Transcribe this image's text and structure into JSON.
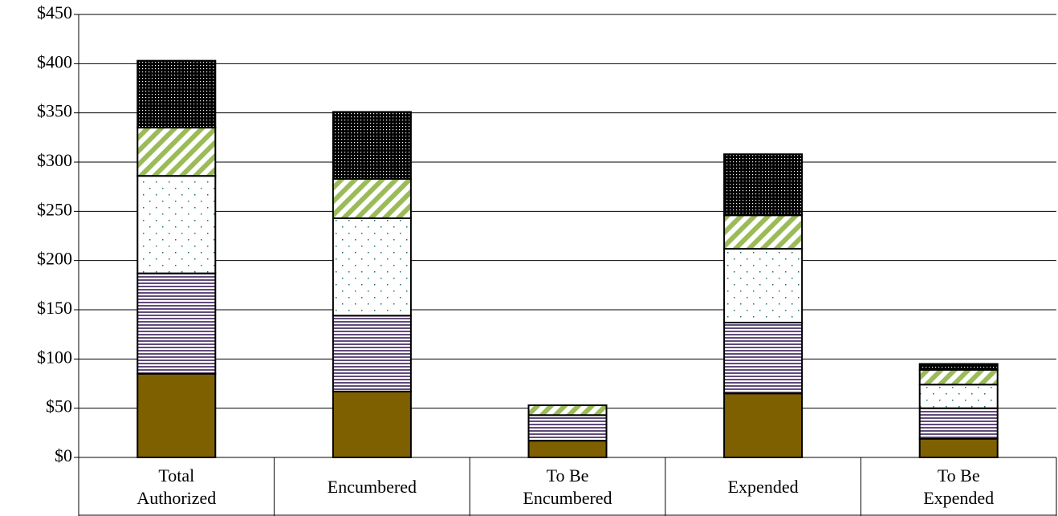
{
  "chart_data": {
    "type": "stacked-bar",
    "categories": [
      "Total Authorized",
      "Encumbered",
      "To Be Encumbered",
      "Expended",
      "To Be Expended"
    ],
    "series": [
      {
        "color": "#7f6000",
        "pattern": "solid",
        "values": [
          85,
          67,
          17,
          65,
          19
        ]
      },
      {
        "color": "#604a7b",
        "pattern": "hlines",
        "values": [
          102,
          77,
          26,
          72,
          31
        ]
      },
      {
        "color": "#1f6f6f",
        "pattern": "dots",
        "values": [
          99,
          99,
          0,
          75,
          24
        ]
      },
      {
        "color": "#9bbb59",
        "pattern": "diagonal",
        "values": [
          49,
          40,
          10,
          34,
          15
        ]
      },
      {
        "color": "#000000",
        "pattern": "dense-dots",
        "values": [
          68,
          68,
          0,
          62,
          6
        ]
      }
    ],
    "ylim": [
      0,
      450
    ],
    "yticks": [
      {
        "value": 0,
        "label": "$0"
      },
      {
        "value": 50,
        "label": "$50"
      },
      {
        "value": 100,
        "label": "$100"
      },
      {
        "value": 150,
        "label": "$150"
      },
      {
        "value": 200,
        "label": "$200"
      },
      {
        "value": 250,
        "label": "$250"
      },
      {
        "value": 300,
        "label": "$300"
      },
      {
        "value": 350,
        "label": "$350"
      },
      {
        "value": 400,
        "label": "$400"
      },
      {
        "value": 450,
        "label": "$450"
      }
    ],
    "grid": true
  }
}
